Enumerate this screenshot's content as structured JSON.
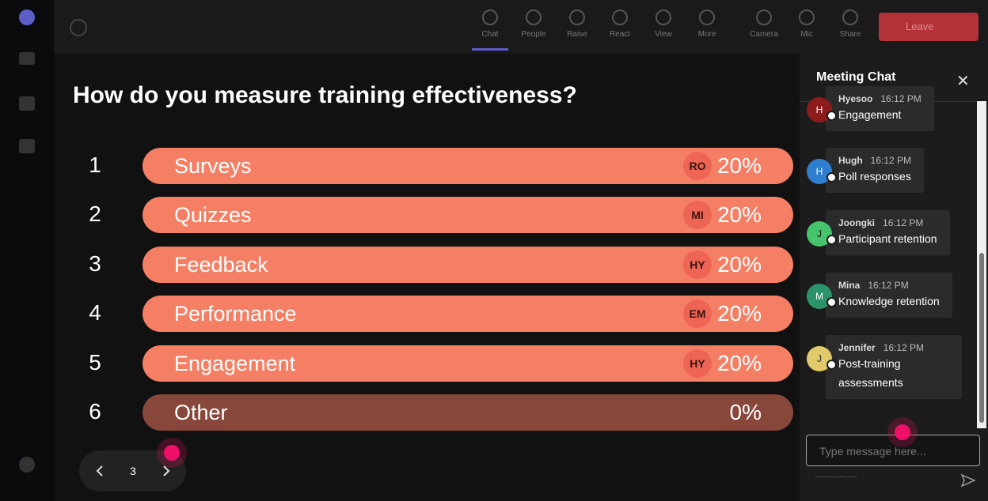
{
  "toolbar": {
    "items": [
      "Chat",
      "People",
      "Raise",
      "React",
      "View",
      "More",
      "Camera",
      "Mic",
      "Share"
    ],
    "leave": "Leave"
  },
  "poll": {
    "question": "How do you measure training effectiveness?",
    "options": [
      {
        "number": 1,
        "label": "Surveys",
        "initials": "RO",
        "percent": "20%"
      },
      {
        "number": 2,
        "label": "Quizzes",
        "initials": "MI",
        "percent": "20%"
      },
      {
        "number": 3,
        "label": "Feedback",
        "initials": "HY",
        "percent": "20%"
      },
      {
        "number": 4,
        "label": "Performance",
        "initials": "EM",
        "percent": "20%"
      },
      {
        "number": 5,
        "label": "Engagement",
        "initials": "HY",
        "percent": "20%"
      },
      {
        "number": 6,
        "label": "Other",
        "percent": "0%"
      }
    ],
    "page": 3
  },
  "chat": {
    "title": "Meeting Chat",
    "messages": [
      {
        "initial": "H",
        "name": "Hyesoo",
        "time": "16:12 PM",
        "text": "Engagement"
      },
      {
        "initial": "H",
        "name": "Hugh",
        "time": "16:12 PM",
        "text": "Poll responses"
      },
      {
        "initial": "J",
        "name": "Joongki",
        "time": "16:12 PM",
        "text": "Participant retention"
      },
      {
        "initial": "M",
        "name": "Mina",
        "time": "16:12 PM",
        "text": "Knowledge retention"
      },
      {
        "initial": "J",
        "name": "Jennifer",
        "time": "16:12 PM",
        "text": "Post-training assessments"
      }
    ],
    "placeholder": "Type message here..."
  }
}
